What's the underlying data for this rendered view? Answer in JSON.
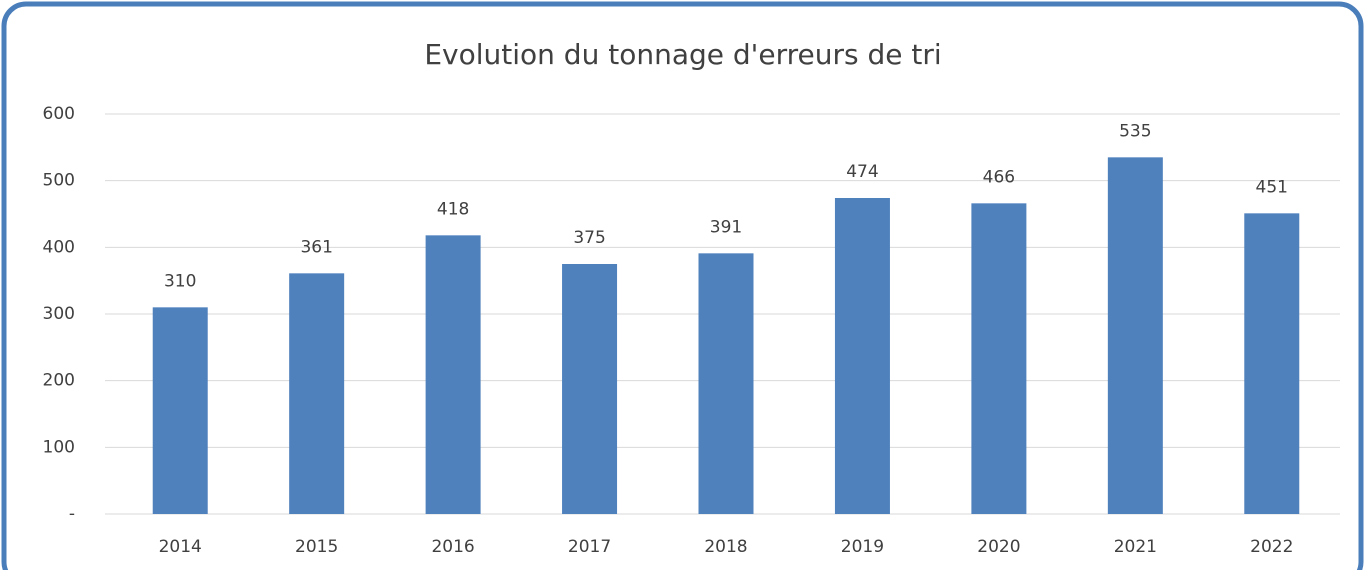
{
  "chart_data": {
    "type": "bar",
    "title": "Evolution du tonnage d'erreurs de tri",
    "categories": [
      "2014",
      "2015",
      "2016",
      "2017",
      "2018",
      "2019",
      "2020",
      "2021",
      "2022"
    ],
    "values": [
      310,
      361,
      418,
      375,
      391,
      474,
      466,
      535,
      451
    ],
    "color": "#4f81bd",
    "ylim": [
      0,
      600
    ],
    "yticks": [
      {
        "value": 0,
        "label": "-"
      },
      100,
      200,
      300,
      400,
      500,
      600
    ],
    "grid": true
  }
}
